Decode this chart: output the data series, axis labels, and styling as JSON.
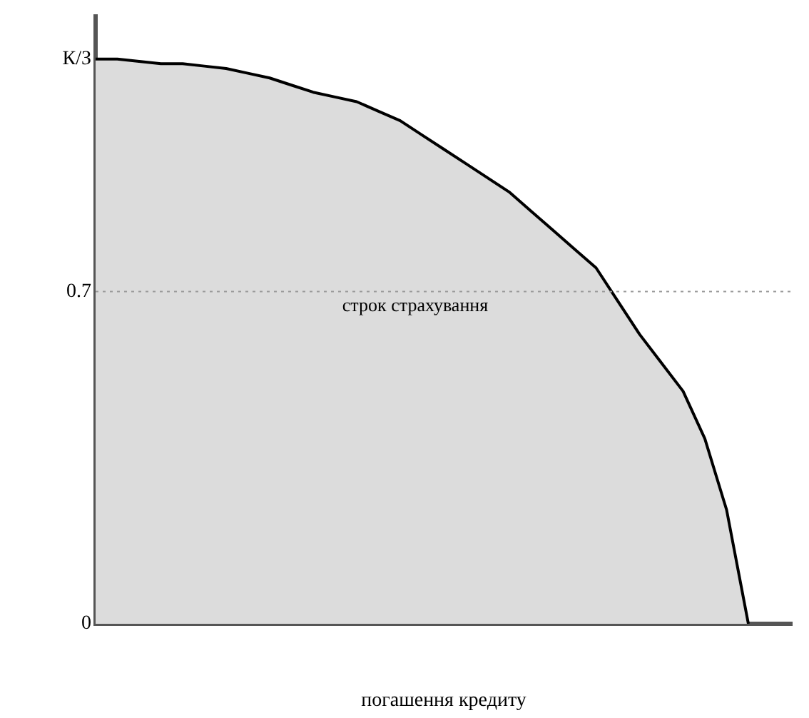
{
  "chart_data": {
    "type": "area",
    "xlabel": "погашення кредиту",
    "categories": [
      null,
      null,
      null,
      null,
      null,
      null,
      null,
      null,
      null,
      null,
      null,
      null,
      null,
      null,
      null,
      null,
      null,
      null,
      null,
      null,
      null,
      null,
      null,
      null,
      null,
      null,
      null,
      null,
      null,
      null,
      null,
      null,
      null
    ],
    "series": [
      {
        "color": "#000000",
        "values": [
          1.19,
          1.19,
          1.185,
          1.18,
          1.18,
          1.175,
          1.17,
          1.16,
          1.15,
          1.135,
          1.12,
          1.11,
          1.1,
          1.08,
          1.06,
          1.03,
          1.0,
          0.97,
          0.94,
          0.91,
          0.87,
          0.83,
          0.79,
          0.75,
          0.68,
          0.61,
          0.55,
          0.49,
          0.39,
          0.24,
          0,
          null,
          null
        ]
      }
    ],
    "ylim": [
      0,
      1.28
    ],
    "yticks": [
      0,
      0.7,
      {
        "value": 1.19,
        "label": "К/З"
      }
    ],
    "tick_labels": "y",
    "grid": false,
    "marker": "none",
    "ref_lines": [
      {
        "axis": "y",
        "value": 0.7,
        "label": "строк страхування",
        "color": "#999999",
        "line_style": "dotted"
      }
    ]
  }
}
